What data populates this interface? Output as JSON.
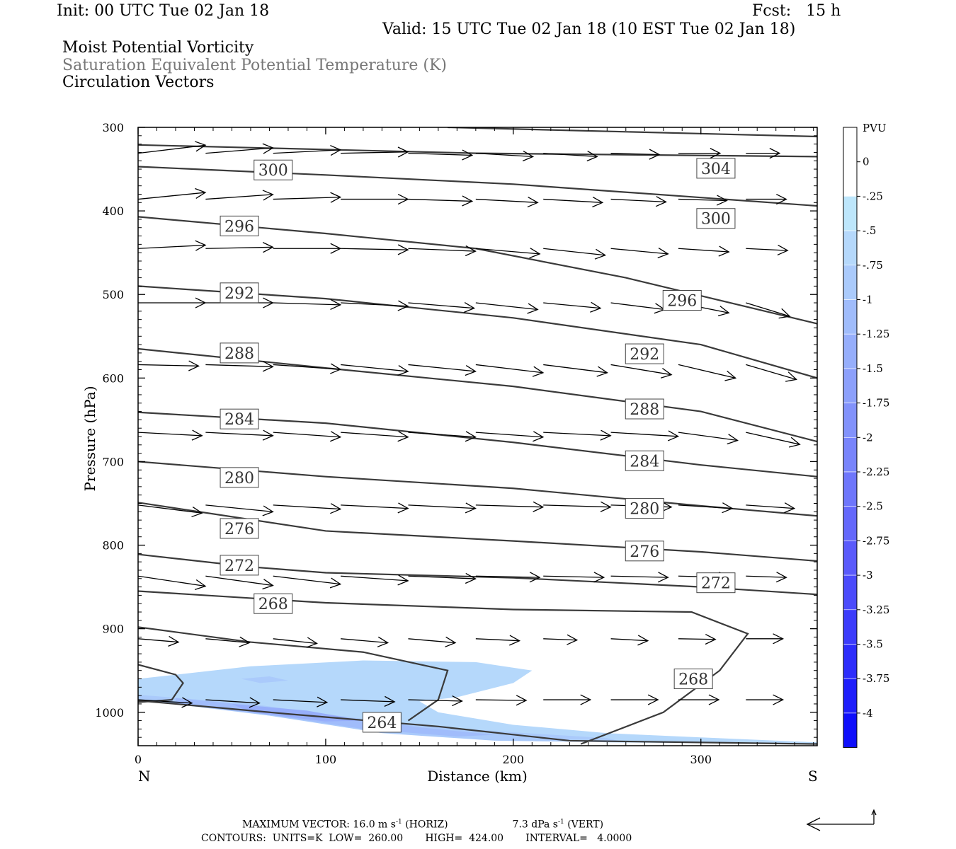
{
  "header": {
    "init": "Init: 00 UTC Tue 02 Jan 18",
    "fcst": "Fcst:   15 h",
    "valid": "Valid: 15 UTC Tue 02 Jan 18 (10 EST Tue 02 Jan 18)"
  },
  "fields": [
    {
      "label": "Moist Potential Vorticity",
      "color": "#000000"
    },
    {
      "label": "Saturation Equivalent Potential Temperature (K)",
      "color": "#777777"
    },
    {
      "label": "Circulation Vectors",
      "color": "#000000"
    }
  ],
  "footer": {
    "line1_prefix": "MAXIMUM VECTOR:  16.0 m s",
    "line1_mid": "(HORIZ)",
    "line1_vert": "7.3 dPa s",
    "line1_end": "(VERT)",
    "exponent": "-1",
    "line2": "CONTOURS:  UNITS=K  LOW=  260.00       HIGH=  424.00       INTERVAL=   4.0000"
  },
  "chart_data": {
    "type": "cross-section",
    "xlabel": "Distance (km)",
    "ylabel": "Pressure (hPa)",
    "x_ticks": [
      "0",
      "100",
      "200",
      "300"
    ],
    "x_tick_values": [
      0,
      100,
      200,
      300
    ],
    "y_ticks": [
      "300",
      "400",
      "500",
      "600",
      "700",
      "800",
      "900",
      "1000"
    ],
    "y_tick_values": [
      300,
      400,
      500,
      600,
      700,
      800,
      900,
      1000
    ],
    "xlim": [
      0,
      362
    ],
    "ylim": [
      300,
      1040
    ],
    "y_reversed": true,
    "end_labels": {
      "left": "N",
      "right": "S"
    },
    "colorbar": {
      "title": "PVU",
      "labels": [
        "0",
        "-.25",
        "-.5",
        "-.75",
        "-1",
        "-1.25",
        "-1.5",
        "-1.75",
        "-2",
        "-2.25",
        "-2.5",
        "-2.75",
        "-3",
        "-3.25",
        "-3.5",
        "-3.75",
        "-4"
      ],
      "colors": [
        "#ffffff",
        "#ffffff",
        "#bde6fb",
        "#b5d8fb",
        "#aacafb",
        "#a0bcfb",
        "#96aefb",
        "#8ca0fb",
        "#8292fb",
        "#7884fb",
        "#6e76fb",
        "#6468fb",
        "#5a5afb",
        "#4b4bfb",
        "#3c3cfb",
        "#2d2dfb",
        "#1e1efb",
        "#0f0ffb"
      ]
    },
    "contour_labels": [
      {
        "text": "300",
        "x": 72,
        "p": 351
      },
      {
        "text": "304",
        "x": 308,
        "p": 349
      },
      {
        "text": "300",
        "x": 308,
        "p": 409
      },
      {
        "text": "296",
        "x": 54,
        "p": 418
      },
      {
        "text": "296",
        "x": 290,
        "p": 507
      },
      {
        "text": "292",
        "x": 54,
        "p": 498
      },
      {
        "text": "292",
        "x": 270,
        "p": 571
      },
      {
        "text": "288",
        "x": 54,
        "p": 570
      },
      {
        "text": "288",
        "x": 270,
        "p": 637
      },
      {
        "text": "284",
        "x": 54,
        "p": 649
      },
      {
        "text": "284",
        "x": 270,
        "p": 699
      },
      {
        "text": "280",
        "x": 54,
        "p": 719
      },
      {
        "text": "280",
        "x": 270,
        "p": 756
      },
      {
        "text": "276",
        "x": 54,
        "p": 780
      },
      {
        "text": "276",
        "x": 270,
        "p": 807
      },
      {
        "text": "272",
        "x": 54,
        "p": 824
      },
      {
        "text": "272",
        "x": 308,
        "p": 845
      },
      {
        "text": "268",
        "x": 72,
        "p": 870
      },
      {
        "text": "268",
        "x": 296,
        "p": 960
      },
      {
        "text": "264",
        "x": 130,
        "p": 1012
      }
    ],
    "isentropes": [
      [
        [
          165,
          300
        ],
        [
          362,
          311
        ]
      ],
      [
        [
          0,
          321
        ],
        [
          180,
          331
        ],
        [
          362,
          335
        ]
      ],
      [
        [
          0,
          347
        ],
        [
          100,
          357
        ],
        [
          200,
          368
        ],
        [
          300,
          384
        ],
        [
          362,
          394
        ]
      ],
      [
        [
          0,
          407
        ],
        [
          100,
          427
        ],
        [
          180,
          445
        ],
        [
          260,
          480
        ],
        [
          362,
          535
        ]
      ],
      [
        [
          0,
          490
        ],
        [
          100,
          505
        ],
        [
          200,
          528
        ],
        [
          300,
          560
        ],
        [
          362,
          600
        ]
      ],
      [
        [
          0,
          565
        ],
        [
          100,
          588
        ],
        [
          200,
          610
        ],
        [
          300,
          640
        ],
        [
          362,
          676
        ]
      ],
      [
        [
          0,
          641
        ],
        [
          100,
          654
        ],
        [
          200,
          677
        ],
        [
          300,
          704
        ],
        [
          362,
          718
        ]
      ],
      [
        [
          0,
          700
        ],
        [
          100,
          718
        ],
        [
          200,
          732
        ],
        [
          300,
          753
        ],
        [
          362,
          765
        ]
      ],
      [
        [
          0,
          749
        ],
        [
          100,
          783
        ],
        [
          200,
          795
        ],
        [
          300,
          808
        ],
        [
          362,
          819
        ]
      ],
      [
        [
          0,
          811
        ],
        [
          60,
          826
        ],
        [
          100,
          833
        ],
        [
          200,
          839
        ],
        [
          300,
          850
        ],
        [
          362,
          859
        ]
      ],
      [
        [
          0,
          855
        ],
        [
          100,
          869
        ],
        [
          200,
          877
        ],
        [
          295,
          880
        ],
        [
          325,
          906
        ],
        [
          310,
          950
        ],
        [
          280,
          1000
        ],
        [
          236,
          1038
        ]
      ],
      [
        [
          0,
          898
        ],
        [
          60,
          916
        ],
        [
          120,
          928
        ],
        [
          165,
          950
        ],
        [
          160,
          985
        ],
        [
          144,
          1010
        ]
      ],
      [
        [
          0,
          943
        ],
        [
          20,
          955
        ],
        [
          24,
          965
        ],
        [
          18,
          985
        ],
        [
          0,
          988
        ]
      ],
      [
        [
          0,
          986
        ],
        [
          80,
          1002
        ],
        [
          160,
          1017
        ],
        [
          230,
          1034
        ],
        [
          362,
          1038
        ]
      ]
    ],
    "pv_regions": [
      {
        "value": -0.5,
        "points": [
          [
            0,
            960
          ],
          [
            60,
            945
          ],
          [
            120,
            938
          ],
          [
            180,
            940
          ],
          [
            210,
            950
          ],
          [
            200,
            965
          ],
          [
            170,
            982
          ],
          [
            150,
            987
          ],
          [
            160,
            1000
          ],
          [
            200,
            1015
          ],
          [
            250,
            1025
          ],
          [
            300,
            1030
          ],
          [
            362,
            1036
          ],
          [
            362,
            1038
          ],
          [
            250,
            1036
          ],
          [
            180,
            1030
          ],
          [
            130,
            1021
          ],
          [
            90,
            1010
          ],
          [
            40,
            995
          ],
          [
            0,
            985
          ]
        ]
      },
      {
        "value": -0.75,
        "points": [
          [
            0,
            979
          ],
          [
            60,
            990
          ],
          [
            100,
            1002
          ],
          [
            140,
            1014
          ],
          [
            200,
            1024
          ],
          [
            250,
            1031
          ],
          [
            260,
            1036
          ],
          [
            190,
            1034
          ],
          [
            130,
            1025
          ],
          [
            70,
            1004
          ],
          [
            0,
            985
          ]
        ]
      },
      {
        "value": -1.0,
        "points": [
          [
            20,
            983
          ],
          [
            70,
            994
          ],
          [
            110,
            1006
          ],
          [
            150,
            1018
          ],
          [
            190,
            1027
          ],
          [
            170,
            1029
          ],
          [
            120,
            1020
          ],
          [
            70,
            1003
          ],
          [
            20,
            990
          ]
        ]
      },
      {
        "value": -1.25,
        "points": [
          [
            50,
            990
          ],
          [
            90,
            998
          ],
          [
            120,
            1010
          ],
          [
            100,
            1011
          ],
          [
            60,
            1000
          ]
        ]
      },
      {
        "value": -0.75,
        "points": [
          [
            55,
            960
          ],
          [
            70,
            957
          ],
          [
            80,
            962
          ],
          [
            65,
            965
          ]
        ]
      }
    ],
    "vector_rows": [
      {
        "p": 331,
        "xs": [
          0,
          36,
          72,
          108,
          144,
          180,
          216,
          252,
          288,
          324
        ],
        "u": [
          1.0,
          1.0,
          1.0,
          1.0,
          0.95,
          0.85,
          0.8,
          0.72,
          0.62,
          0.5
        ],
        "w": [
          -0.12,
          -0.08,
          -0.05,
          -0.02,
          0.03,
          0.05,
          0.05,
          0.02,
          0.0,
          0.0
        ]
      },
      {
        "p": 386,
        "xs": [
          0,
          36,
          72,
          108,
          144,
          180,
          216,
          252,
          288,
          324
        ],
        "u": [
          1.0,
          1.0,
          1.0,
          1.0,
          0.95,
          0.92,
          0.88,
          0.82,
          0.72,
          0.6
        ],
        "w": [
          -0.1,
          -0.07,
          -0.03,
          0.0,
          0.03,
          0.05,
          0.05,
          0.04,
          0.02,
          0.0
        ]
      },
      {
        "p": 445,
        "xs": [
          0,
          36,
          72,
          108,
          144,
          180,
          216,
          252,
          288,
          324
        ],
        "u": [
          1.0,
          1.0,
          1.0,
          1.0,
          1.0,
          0.95,
          0.92,
          0.85,
          0.75,
          0.62
        ],
        "w": [
          -0.05,
          -0.02,
          0.0,
          0.02,
          0.04,
          0.08,
          0.1,
          0.08,
          0.05,
          0.03
        ]
      },
      {
        "p": 510,
        "xs": [
          0,
          36,
          72,
          108,
          144,
          180,
          216,
          252,
          288,
          324
        ],
        "u": [
          1.0,
          1.0,
          1.0,
          1.0,
          0.98,
          0.92,
          0.85,
          0.8,
          0.75,
          0.65
        ],
        "w": [
          0.0,
          0.0,
          0.03,
          0.05,
          0.08,
          0.1,
          0.08,
          0.1,
          0.15,
          0.2
        ]
      },
      {
        "p": 584,
        "xs": [
          0,
          36,
          72,
          108,
          144,
          180,
          216,
          252,
          288,
          324
        ],
        "u": [
          0.9,
          1.0,
          1.0,
          1.0,
          1.0,
          1.0,
          0.95,
          0.9,
          0.85,
          0.75
        ],
        "w": [
          0.02,
          0.03,
          0.07,
          0.1,
          0.1,
          0.12,
          0.12,
          0.15,
          0.2,
          0.22
        ]
      },
      {
        "p": 665,
        "xs": [
          0,
          36,
          72,
          108,
          144,
          180,
          216,
          252,
          288,
          324
        ],
        "u": [
          0.95,
          1.0,
          1.0,
          1.0,
          1.0,
          1.0,
          1.0,
          1.0,
          0.88,
          0.8
        ],
        "w": [
          0.05,
          0.05,
          0.07,
          0.07,
          0.07,
          0.07,
          0.05,
          0.06,
          0.12,
          0.18
        ]
      },
      {
        "p": 752,
        "xs": [
          0,
          36,
          72,
          108,
          144,
          180,
          216,
          252,
          288,
          324
        ],
        "u": [
          0.95,
          1.0,
          1.0,
          1.0,
          1.0,
          1.0,
          1.0,
          0.9,
          0.8,
          0.72
        ],
        "w": [
          0.12,
          0.1,
          0.06,
          0.05,
          0.05,
          0.03,
          0.03,
          0.03,
          0.05,
          0.05
        ]
      },
      {
        "p": 837,
        "xs": [
          0,
          36,
          72,
          108,
          144,
          180,
          216,
          252,
          288,
          324
        ],
        "u": [
          1.0,
          1.0,
          1.0,
          1.0,
          1.0,
          0.95,
          0.9,
          0.85,
          0.75,
          0.6
        ],
        "w": [
          0.15,
          0.14,
          0.12,
          0.07,
          0.04,
          0.02,
          0.02,
          0.02,
          0.02,
          0.02
        ]
      },
      {
        "p": 912,
        "xs": [
          0,
          36,
          72,
          108,
          144,
          180,
          216,
          252,
          288,
          324
        ],
        "u": [
          0.6,
          0.65,
          0.65,
          0.7,
          0.7,
          0.65,
          0.5,
          0.55,
          0.55,
          0.55
        ],
        "w": [
          0.05,
          0.06,
          0.07,
          0.06,
          0.06,
          0.03,
          0.02,
          0.03,
          0.01,
          0.0
        ]
      },
      {
        "p": 985,
        "xs": [
          0,
          36,
          72,
          108,
          144,
          180,
          216,
          252,
          288,
          324
        ],
        "u": [
          0.8,
          0.8,
          0.8,
          0.8,
          0.8,
          0.75,
          0.7,
          0.7,
          0.6,
          0.55
        ],
        "w": [
          0.05,
          0.05,
          0.04,
          0.03,
          0.02,
          0.01,
          0.0,
          0.0,
          0.0,
          0.0
        ]
      }
    ]
  }
}
